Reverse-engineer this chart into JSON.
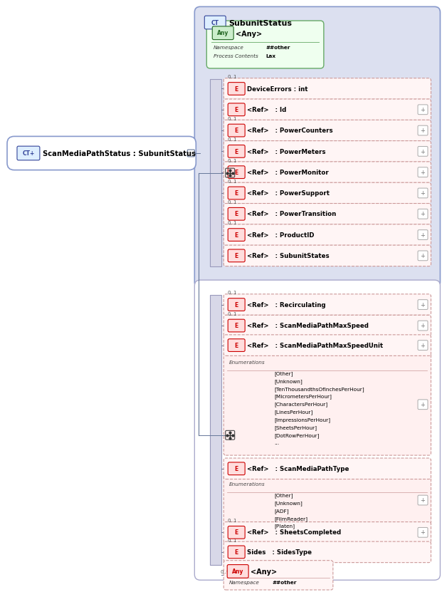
{
  "bg": "#ffffff",
  "main_label": "ScanMediaPathStatus : SubunitStatus",
  "top_elements": [
    {
      "lbl": "DeviceErrors : int",
      "card": "0..1",
      "plus": false
    },
    {
      "lbl": "<Ref>   : Id",
      "card": "",
      "plus": true
    },
    {
      "lbl": "<Ref>   : PowerCounters",
      "card": "0..1",
      "plus": true
    },
    {
      "lbl": "<Ref>   : PowerMeters",
      "card": "0..1",
      "plus": true
    },
    {
      "lbl": "<Ref>   : PowerMonitor",
      "card": "0..1",
      "plus": true
    },
    {
      "lbl": "<Ref>   : PowerSupport",
      "card": "0..1",
      "plus": true
    },
    {
      "lbl": "<Ref>   : PowerTransition",
      "card": "0..1",
      "plus": true
    },
    {
      "lbl": "<Ref>   : ProductID",
      "card": "0..1",
      "plus": true
    },
    {
      "lbl": "<Ref>   : SubunitStates",
      "card": "",
      "plus": true
    }
  ],
  "bottom_rows": [
    {
      "lbl": "<Ref>   : Recirculating",
      "card": "0..1",
      "plus": true,
      "enum": null
    },
    {
      "lbl": "<Ref>   : ScanMediaPathMaxSpeed",
      "card": "0..1",
      "plus": true,
      "enum": null
    },
    {
      "lbl": "<Ref>   : ScanMediaPathMaxSpeedUnit",
      "card": "",
      "plus": true,
      "enum": {
        "lbl": "Enumerations",
        "items": [
          "[Other]",
          "[Unknown]",
          "[TenThousandthsOfInchesPerHour]",
          "[MicrometersPerHour]",
          "[CharactersPerHour]",
          "[LinesPerHour]",
          "[ImpressionsPerHour]",
          "[SheetsPerHour]",
          "[DotRowPerHour]",
          "..."
        ]
      }
    },
    {
      "lbl": "<Ref>   : ScanMediaPathType",
      "card": "",
      "plus": false,
      "enum": {
        "lbl": "Enumerations",
        "items": [
          "[Other]",
          "[Unknown]",
          "[ADF]",
          "[FilmReader]",
          "[Platen]"
        ]
      }
    },
    {
      "lbl": "<Ref>   : SheetsCompleted",
      "card": "0..1",
      "plus": true,
      "enum": null
    },
    {
      "lbl": "Sides   : SidesType",
      "card": "0..1",
      "plus": false,
      "enum": null
    }
  ],
  "bottom_any_card": "0..*",
  "bottom_any_namespace": "##other",
  "col": {
    "sub_bg": "#dce0f0",
    "sub_bd": "#8899cc",
    "seq": "#d8d8e8",
    "seq_bd": "#9999bb",
    "el_bg": "#fff5f5",
    "el_bd": "#cc9999",
    "eb": "#ffdddd",
    "ef": "#cc0000",
    "cb": "#ddeeff",
    "cf": "#334499",
    "agb": "#cceecc",
    "agf": "#226622",
    "ag_bg": "#efffef",
    "ag_bd": "#66aa66",
    "apb": "#ffdddd",
    "apf": "#cc0000",
    "enb": "#fff0f0",
    "en_bd": "#cc9999",
    "line": "#667799",
    "mn_bd": "#8899cc",
    "bot_bd": "#aaaacc",
    "plus_bd": "#aaaaaa"
  }
}
